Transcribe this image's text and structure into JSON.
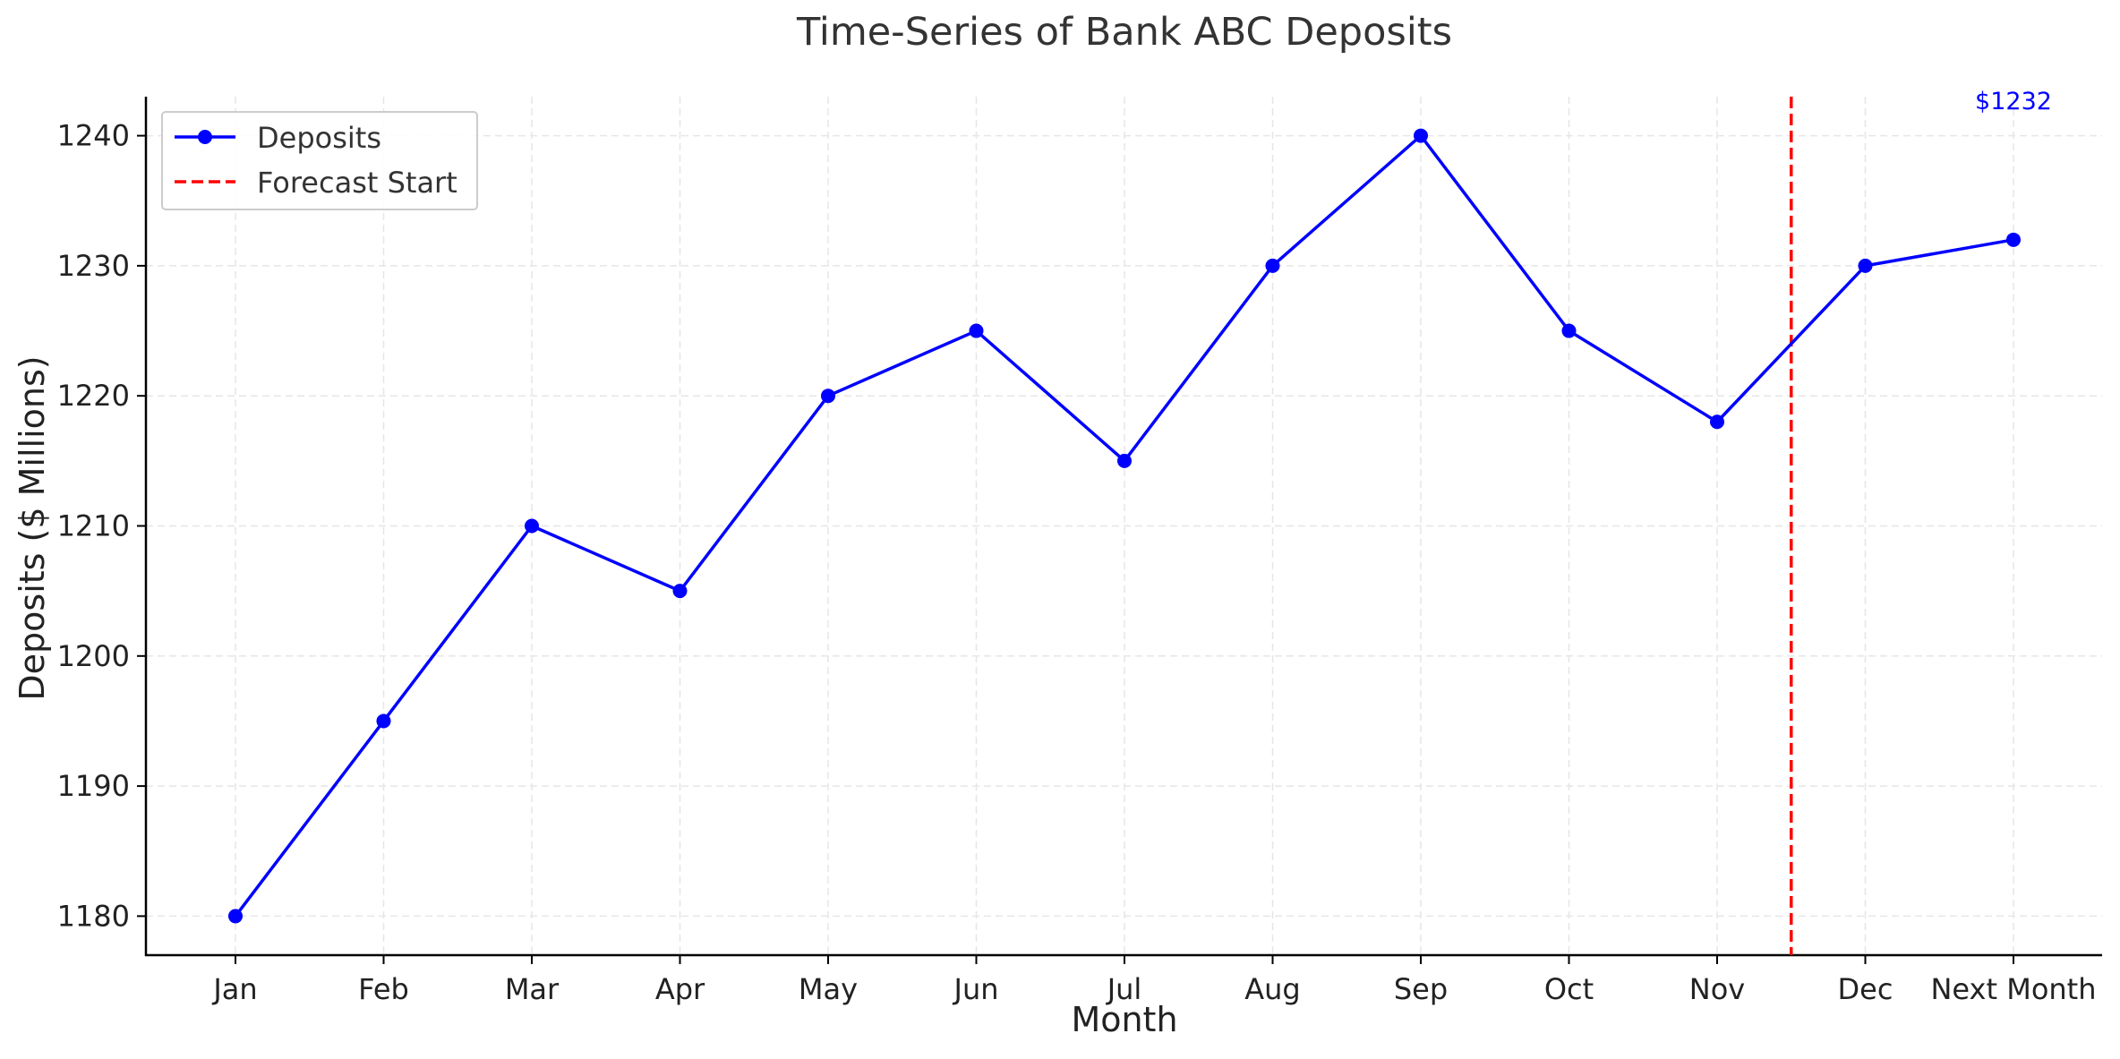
{
  "chart_data": {
    "type": "line",
    "title": "Time-Series of Bank ABC Deposits",
    "xlabel": "Month",
    "ylabel": "Deposits ($ Millions)",
    "categories": [
      "Jan",
      "Feb",
      "Mar",
      "Apr",
      "May",
      "Jun",
      "Jul",
      "Aug",
      "Sep",
      "Oct",
      "Nov",
      "Dec",
      "Next Month"
    ],
    "series": [
      {
        "name": "Deposits",
        "values": [
          1180,
          1195,
          1210,
          1205,
          1220,
          1225,
          1215,
          1230,
          1240,
          1225,
          1218,
          1230,
          1232
        ],
        "color": "#0000ff",
        "marker": "circle"
      }
    ],
    "forecast_line": {
      "name": "Forecast Start",
      "position_between": [
        "Nov",
        "Dec"
      ],
      "color": "#ff0000",
      "style": "dashed"
    },
    "annotation": {
      "text": "$1232",
      "category": "Next Month",
      "color": "#0000ff"
    },
    "ylim": [
      1177,
      1243
    ],
    "yticks": [
      1180,
      1190,
      1200,
      1210,
      1220,
      1230,
      1240
    ],
    "grid": true,
    "legend_position": "top-left"
  }
}
